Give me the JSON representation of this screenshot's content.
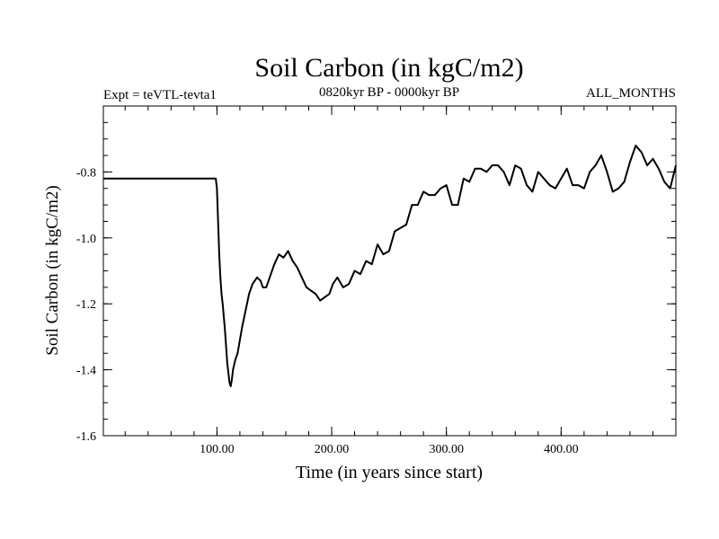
{
  "chart_data": {
    "type": "line",
    "title": "Soil Carbon (in kgC/m2)",
    "subtitle_left": "Expt = teVTL-tevta1",
    "subtitle_center": "0820kyr BP - 0000kyr BP",
    "subtitle_right": "ALL_MONTHS",
    "xlabel": "Time (in years since start)",
    "ylabel": "Soil Carbon (in kgC/m2)",
    "xlim": [
      1,
      500
    ],
    "ylim": [
      -1.6,
      -0.6
    ],
    "x_ticks": [
      100,
      200,
      300,
      400
    ],
    "x_tick_labels": [
      "100.00",
      "200.00",
      "300.00",
      "400.00"
    ],
    "y_ticks": [
      -1.6,
      -1.4,
      -1.2,
      -1.0,
      -0.8
    ],
    "y_tick_labels": [
      "-1.6",
      "-1.4",
      "-1.2",
      "-1.0",
      "-0.8"
    ],
    "grid": false,
    "series": [
      {
        "name": "Soil Carbon",
        "color": "#000000",
        "x": [
          1,
          20,
          40,
          60,
          80,
          99,
          100,
          101,
          102,
          103,
          104,
          105,
          106,
          107,
          108,
          109,
          110,
          111,
          112,
          113,
          114,
          116,
          118,
          120,
          122,
          125,
          128,
          131,
          135,
          138,
          140,
          143,
          146,
          150,
          154,
          158,
          162,
          166,
          170,
          174,
          178,
          182,
          186,
          190,
          194,
          198,
          201,
          205,
          210,
          215,
          220,
          225,
          230,
          235,
          240,
          245,
          250,
          255,
          260,
          265,
          270,
          275,
          280,
          285,
          290,
          295,
          300,
          305,
          310,
          315,
          320,
          325,
          330,
          335,
          340,
          345,
          350,
          355,
          360,
          365,
          370,
          375,
          380,
          385,
          390,
          395,
          400,
          405,
          410,
          415,
          420,
          425,
          430,
          435,
          440,
          445,
          450,
          455,
          460,
          465,
          470,
          475,
          480,
          485,
          490,
          495,
          500
        ],
        "values": [
          -0.82,
          -0.82,
          -0.82,
          -0.82,
          -0.82,
          -0.82,
          -0.85,
          -0.95,
          -1.05,
          -1.12,
          -1.17,
          -1.2,
          -1.24,
          -1.28,
          -1.33,
          -1.38,
          -1.41,
          -1.44,
          -1.45,
          -1.43,
          -1.4,
          -1.37,
          -1.35,
          -1.31,
          -1.27,
          -1.22,
          -1.17,
          -1.14,
          -1.12,
          -1.13,
          -1.15,
          -1.15,
          -1.12,
          -1.08,
          -1.05,
          -1.06,
          -1.04,
          -1.07,
          -1.09,
          -1.12,
          -1.15,
          -1.16,
          -1.17,
          -1.19,
          -1.18,
          -1.17,
          -1.14,
          -1.12,
          -1.15,
          -1.14,
          -1.1,
          -1.11,
          -1.07,
          -1.08,
          -1.02,
          -1.05,
          -1.04,
          -0.98,
          -0.97,
          -0.96,
          -0.9,
          -0.9,
          -0.86,
          -0.87,
          -0.87,
          -0.85,
          -0.84,
          -0.9,
          -0.9,
          -0.82,
          -0.83,
          -0.79,
          -0.79,
          -0.8,
          -0.78,
          -0.78,
          -0.8,
          -0.84,
          -0.78,
          -0.79,
          -0.84,
          -0.86,
          -0.8,
          -0.82,
          -0.84,
          -0.85,
          -0.82,
          -0.79,
          -0.84,
          -0.84,
          -0.85,
          -0.8,
          -0.78,
          -0.75,
          -0.8,
          -0.86,
          -0.85,
          -0.83,
          -0.77,
          -0.72,
          -0.74,
          -0.78,
          -0.76,
          -0.79,
          -0.83,
          -0.85,
          -0.78
        ]
      }
    ]
  }
}
